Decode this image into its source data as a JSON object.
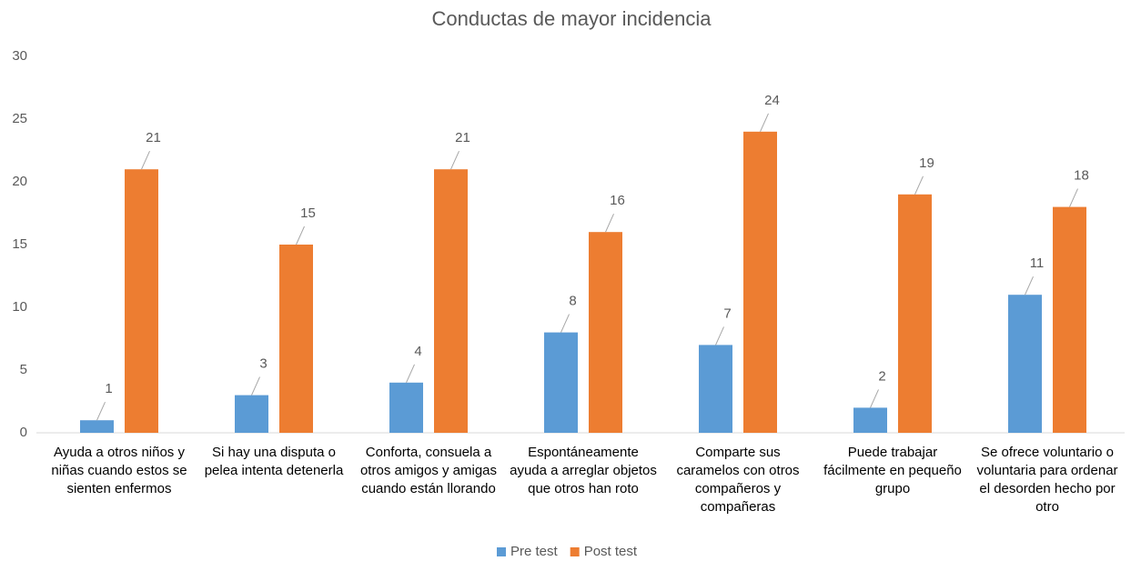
{
  "chart_data": {
    "type": "bar",
    "title": "Conductas de mayor incidencia",
    "categories": [
      "Ayuda a otros niños y niñas cuando estos se sienten enfermos",
      "Si hay una disputa o pelea intenta detenerla",
      "Conforta, consuela a otros amigos y amigas cuando están llorando",
      "Espontáneamente ayuda a arreglar objetos que otros han roto",
      "Comparte sus caramelos con otros compañeros y compañeras",
      "Puede trabajar fácilmente en pequeño grupo",
      "Se ofrece voluntario o voluntaria para ordenar el desorden hecho por otro"
    ],
    "series": [
      {
        "name": "Pre test",
        "color": "#5b9bd5",
        "values": [
          1,
          3,
          4,
          8,
          7,
          2,
          11
        ]
      },
      {
        "name": "Post test",
        "color": "#ed7d31",
        "values": [
          21,
          15,
          21,
          16,
          24,
          19,
          18
        ]
      }
    ],
    "ylim": [
      0,
      30
    ],
    "yticks": [
      0,
      5,
      10,
      15,
      20,
      25,
      30
    ],
    "grid": false,
    "legend": "bottom"
  }
}
